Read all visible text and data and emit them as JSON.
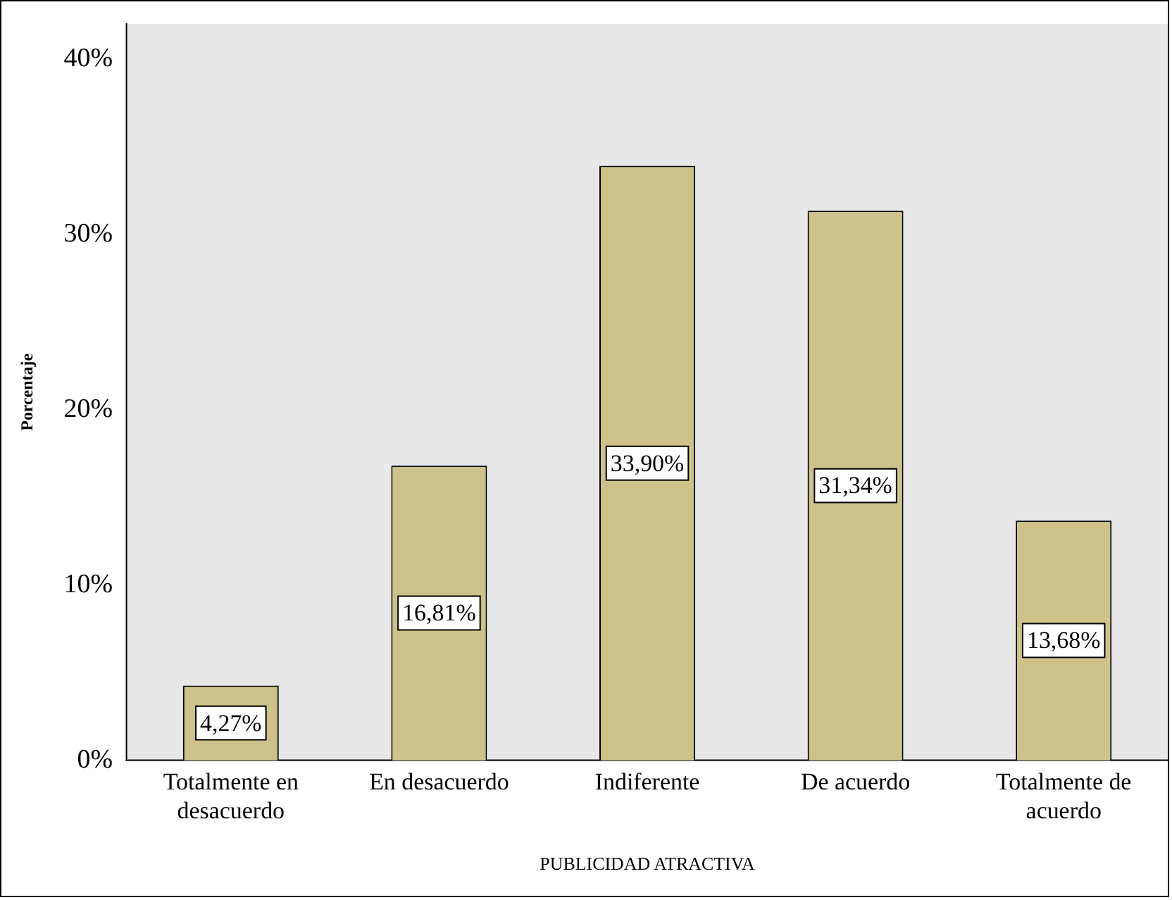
{
  "chart_data": {
    "type": "bar",
    "xlabel": "PUBLICIDAD ATRACTIVA",
    "ylabel": "Porcentaje",
    "categories": [
      "Totalmente en desacuerdo",
      "En desacuerdo",
      "Indiferente",
      "De acuerdo",
      "Totalmente de acuerdo"
    ],
    "values": [
      4.27,
      16.81,
      33.9,
      31.34,
      13.68
    ],
    "value_labels": [
      "4,27%",
      "16,81%",
      "33,90%",
      "31,34%",
      "13,68%"
    ],
    "color": "#ccc28a",
    "ylim": [
      0,
      42
    ],
    "yticks": [
      {
        "value": 0,
        "label": "0%"
      },
      {
        "value": 10,
        "label": "10%"
      },
      {
        "value": 20,
        "label": "20%"
      },
      {
        "value": 30,
        "label": "30%"
      },
      {
        "value": 40,
        "label": "40%"
      }
    ],
    "grid": false,
    "legend": false
  }
}
